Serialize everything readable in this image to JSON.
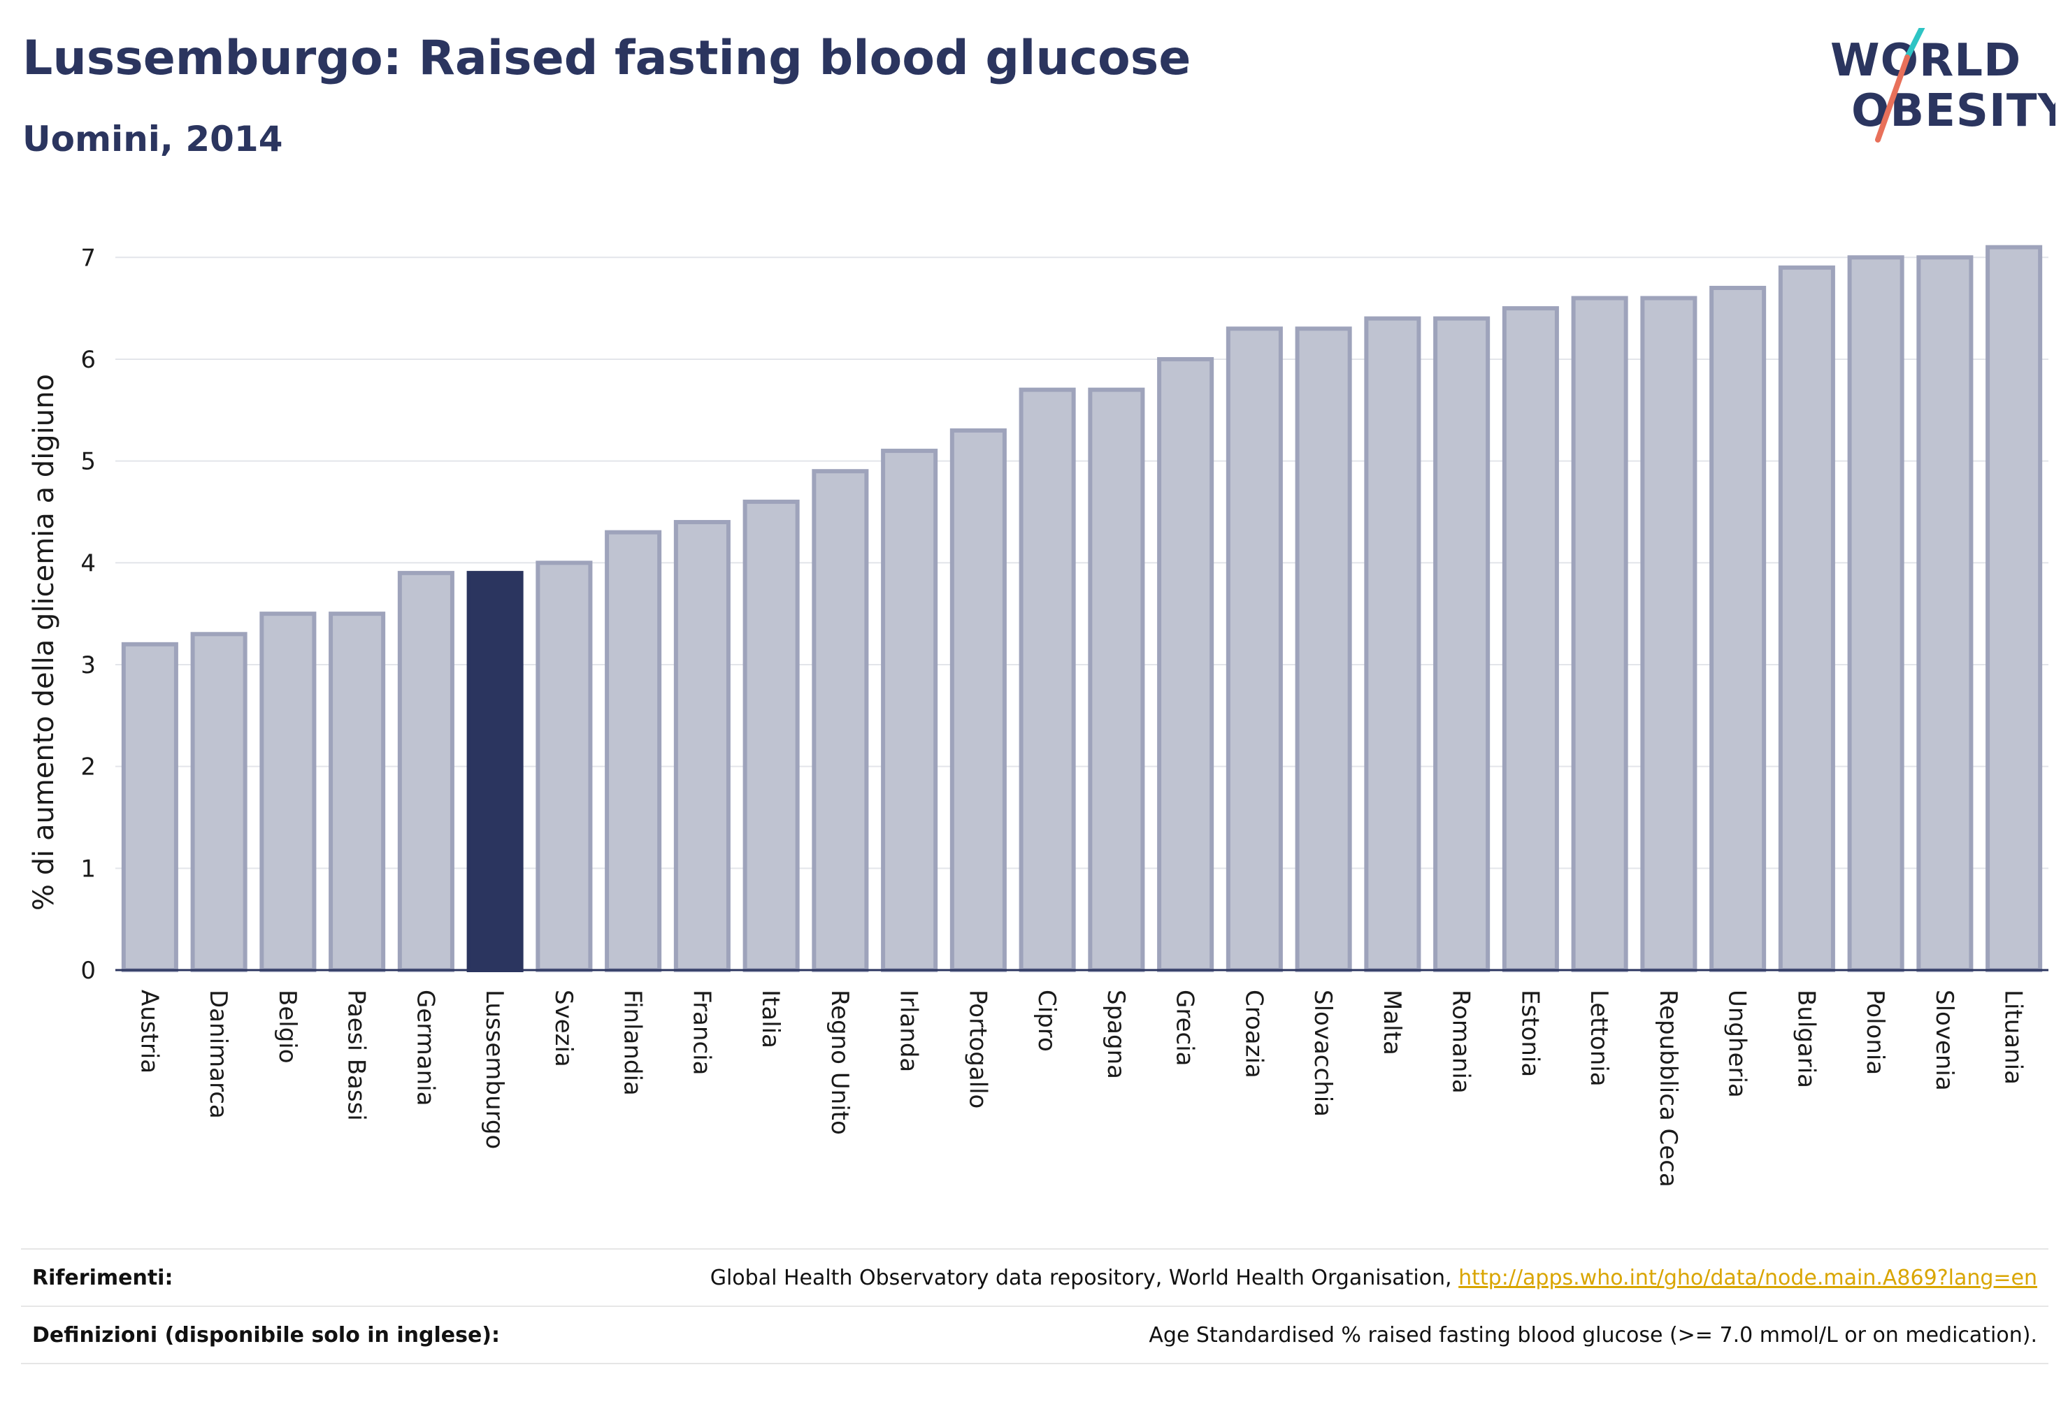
{
  "header": {
    "title": "Lussemburgo: Raised fasting blood glucose",
    "subtitle": "Uomini, 2014"
  },
  "logo": {
    "line1": "WORLD",
    "line2": "OBESITY",
    "accent_teal": "#2ec4c4",
    "accent_coral": "#e8705a"
  },
  "chart_data": {
    "type": "bar",
    "ylabel": "% di aumento della glicemia a digiuno",
    "xlabel": "",
    "ylim": [
      0,
      7.4
    ],
    "yticks": [
      0,
      1,
      2,
      3,
      4,
      5,
      6,
      7
    ],
    "grid": true,
    "highlight": "Lussemburgo",
    "colors": {
      "bar": "#bfc3d1",
      "bar_edge": "#9ea3bb",
      "highlight": "#2b355f"
    },
    "categories": [
      "Austria",
      "Danimarca",
      "Belgio",
      "Paesi Bassi",
      "Germania",
      "Lussemburgo",
      "Svezia",
      "Finlandia",
      "Francia",
      "Italia",
      "Regno Unito",
      "Irlanda",
      "Portogallo",
      "Cipro",
      "Spagna",
      "Grecia",
      "Croazia",
      "Slovacchia",
      "Malta",
      "Romania",
      "Estonia",
      "Lettonia",
      "Repubblica Ceca",
      "Ungheria",
      "Bulgaria",
      "Polonia",
      "Slovenia",
      "Lituania"
    ],
    "values": [
      3.2,
      3.3,
      3.5,
      3.5,
      3.9,
      3.9,
      4.0,
      4.3,
      4.4,
      4.6,
      4.9,
      5.1,
      5.3,
      5.7,
      5.7,
      6.0,
      6.3,
      6.3,
      6.4,
      6.4,
      6.5,
      6.6,
      6.6,
      6.7,
      6.9,
      7.0,
      7.0,
      7.1
    ]
  },
  "footer": {
    "refs_label": "Riferimenti:",
    "refs_text": "Global Health Observatory data repository, World Health Organisation,",
    "refs_link": "http://apps.who.int/gho/data/node.main.A869?lang=en",
    "defs_label": "Definizioni (disponibile solo in inglese):",
    "defs_text": "Age Standardised % raised fasting blood glucose (>= 7.0 mmol/L or on medication)."
  }
}
